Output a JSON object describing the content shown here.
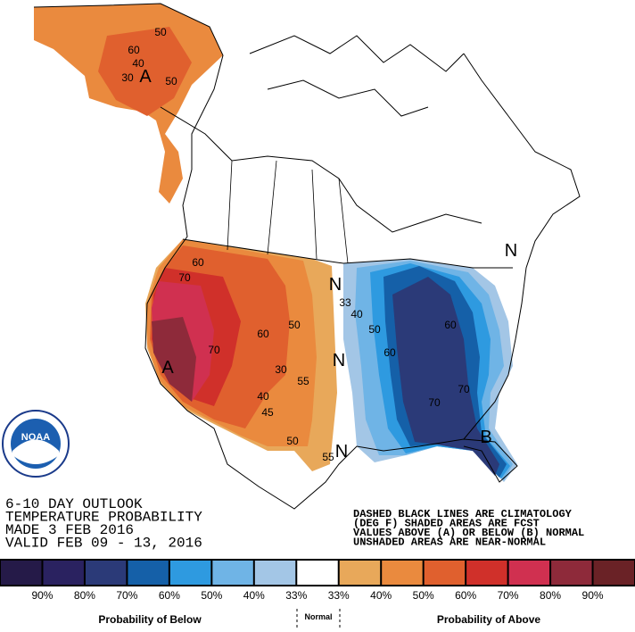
{
  "header": {
    "title_lines": [
      "6-10 DAY OUTLOOK",
      "TEMPERATURE PROBABILITY",
      "MADE  3 FEB 2016",
      "VALID  FEB 09 - 13, 2016"
    ]
  },
  "notes": [
    "DASHED BLACK LINES ARE CLIMATOLOGY",
    "(DEG F) SHADED AREAS ARE FCST",
    "VALUES ABOVE (A) OR BELOW (B) NORMAL",
    "UNSHADED AREAS ARE NEAR-NORMAL"
  ],
  "logo": "NOAA",
  "map_labels": [
    "50",
    "60",
    "40",
    "30",
    "A",
    "50",
    "60",
    "70",
    "50",
    "60",
    "70",
    "30",
    "40",
    "45",
    "55",
    "50",
    "55",
    "A",
    "N",
    "33",
    "40",
    "N",
    "50",
    "60",
    "60",
    "70",
    "70",
    "B",
    "N",
    "N"
  ],
  "legend": {
    "colors": [
      "#251a48",
      "#2a2260",
      "#2b3a78",
      "#1560a8",
      "#2e9ae0",
      "#6fb4e6",
      "#a3c6e6",
      "#ffffff",
      "#e8a85a",
      "#ea8a3e",
      "#e0602e",
      "#d0302a",
      "#d03050",
      "#8e2a3a",
      "#6a2226"
    ],
    "ticks": [
      "90%",
      "80%",
      "70%",
      "60%",
      "50%",
      "40%",
      "33%",
      "33%",
      "40%",
      "50%",
      "60%",
      "70%",
      "80%",
      "90%"
    ],
    "below": "Probability of Below",
    "normal": "Normal",
    "above": "Probability of Above"
  }
}
